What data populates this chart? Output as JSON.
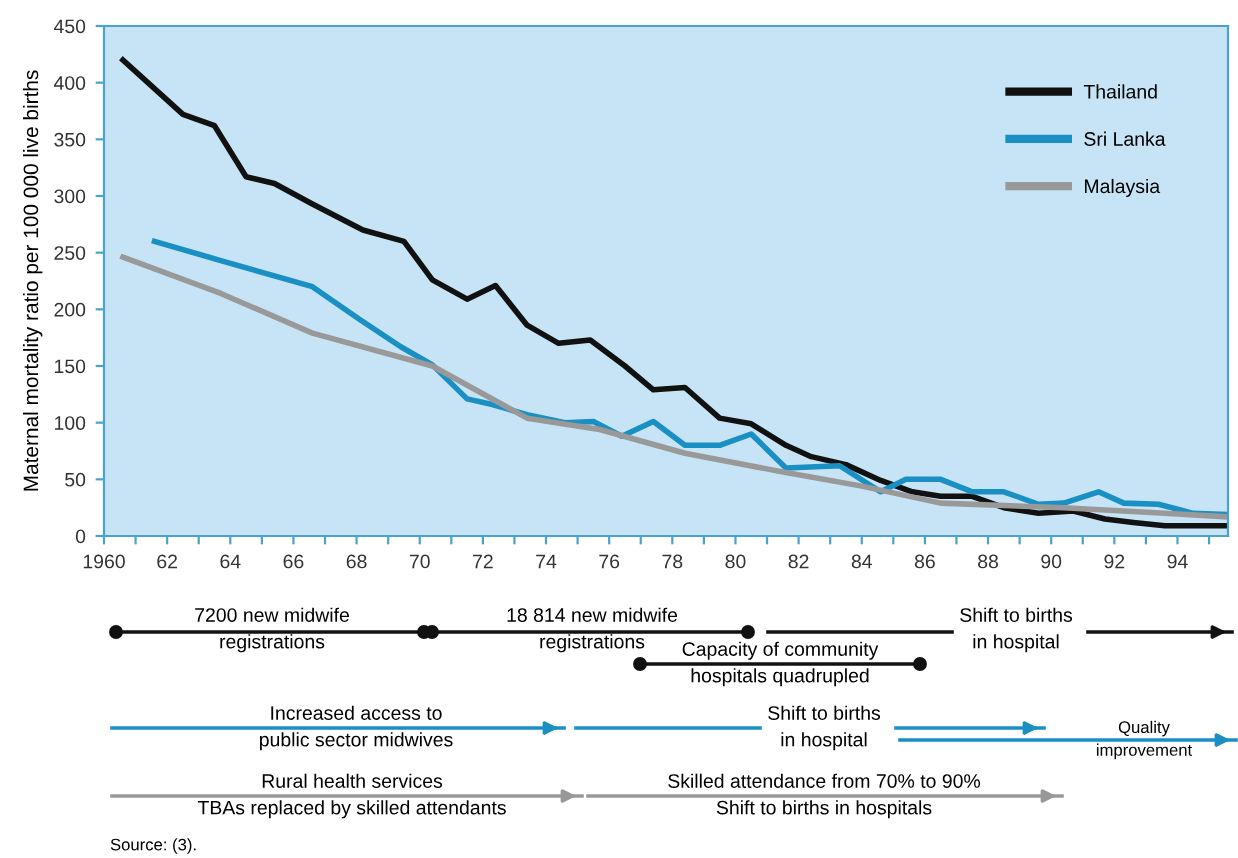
{
  "chart_data": {
    "type": "line",
    "ylabel": "Maternal mortality ratio per 100 000 live births",
    "xlim": [
      1960,
      1995.6
    ],
    "ylim": [
      0,
      450
    ],
    "yticks": [
      0,
      50,
      100,
      150,
      200,
      250,
      300,
      350,
      400,
      450
    ],
    "xticks": [
      {
        "value": 1960,
        "label": "1960"
      },
      {
        "value": 1961,
        "label": null
      },
      {
        "value": 1962,
        "label": "62"
      },
      {
        "value": 1963,
        "label": null
      },
      {
        "value": 1964,
        "label": "64"
      },
      {
        "value": 1965,
        "label": null
      },
      {
        "value": 1966,
        "label": "66"
      },
      {
        "value": 1967,
        "label": null
      },
      {
        "value": 1968,
        "label": "68"
      },
      {
        "value": 1969,
        "label": null
      },
      {
        "value": 1970,
        "label": "70"
      },
      {
        "value": 1971,
        "label": null
      },
      {
        "value": 1972,
        "label": "72"
      },
      {
        "value": 1973,
        "label": null
      },
      {
        "value": 1974,
        "label": "74"
      },
      {
        "value": 1975,
        "label": null
      },
      {
        "value": 1976,
        "label": "76"
      },
      {
        "value": 1977,
        "label": null
      },
      {
        "value": 1978,
        "label": "78"
      },
      {
        "value": 1979,
        "label": null
      },
      {
        "value": 1980,
        "label": "80"
      },
      {
        "value": 1981,
        "label": null
      },
      {
        "value": 1982,
        "label": "82"
      },
      {
        "value": 1983,
        "label": null
      },
      {
        "value": 1984,
        "label": "84"
      },
      {
        "value": 1985,
        "label": null
      },
      {
        "value": 1986,
        "label": "86"
      },
      {
        "value": 1987,
        "label": null
      },
      {
        "value": 1988,
        "label": "88"
      },
      {
        "value": 1989,
        "label": null
      },
      {
        "value": 1990,
        "label": "90"
      },
      {
        "value": 1991,
        "label": null
      },
      {
        "value": 1992,
        "label": "92"
      },
      {
        "value": 1993,
        "label": null
      },
      {
        "value": 1994,
        "label": "94"
      },
      {
        "value": 1995,
        "label": null
      }
    ],
    "grid": false,
    "legend": "top right",
    "marker": "none",
    "line_style": "solid",
    "series": [
      {
        "name": "Thailand",
        "color": "#111111",
        "x": [
          1960.6,
          1962.5,
          1963.5,
          1964.5,
          1965.4,
          1966.6,
          1968.2,
          1969.5,
          1970.4,
          1971.5,
          1972.4,
          1973.4,
          1974.4,
          1975.4,
          1976.5,
          1977.4,
          1978.4,
          1979.5,
          1980.5,
          1981.6,
          1982.4,
          1983.5,
          1984.6,
          1985.6,
          1986.5,
          1987.5,
          1988.5,
          1989.6,
          1990.7,
          1991.7,
          1992.6,
          1993.6,
          1995.5
        ],
        "values": [
          420,
          372,
          362,
          317,
          311,
          293,
          270,
          260,
          226,
          209,
          221,
          186,
          170,
          173,
          150,
          129,
          131,
          104,
          99,
          80,
          70,
          63,
          49,
          39,
          35,
          35,
          25,
          20,
          22,
          15,
          12,
          9,
          9
        ]
      },
      {
        "name": "Sri Lanka",
        "color": "#1a8fc4",
        "x": [
          1961.6,
          1963.7,
          1966.6,
          1968.1,
          1969.4,
          1970.4,
          1971.5,
          1972.3,
          1973.4,
          1974.6,
          1975.5,
          1976.4,
          1977.4,
          1978.4,
          1979.5,
          1980.5,
          1981.6,
          1983.3,
          1984.6,
          1985.4,
          1986.5,
          1987.5,
          1988.5,
          1989.6,
          1990.4,
          1991.5,
          1992.3,
          1993.4,
          1994.5,
          1995.5
        ],
        "values": [
          260,
          243,
          220,
          191,
          167,
          151,
          121,
          116,
          107,
          100,
          101,
          88,
          101,
          80,
          80,
          90,
          60,
          62,
          39,
          50,
          50,
          39,
          39,
          28,
          29,
          39,
          29,
          28,
          20,
          19
        ]
      },
      {
        "name": "Malaysia",
        "color": "#999999",
        "x": [
          1960.6,
          1963.7,
          1966.6,
          1970.4,
          1973.4,
          1975.7,
          1978.4,
          1981.6,
          1984,
          1986.5,
          1990.4,
          1993.6,
          1995.5
        ],
        "values": [
          246,
          214,
          179,
          150,
          104,
          94,
          73,
          56,
          44,
          29,
          25,
          20,
          17
        ]
      }
    ],
    "annotations": [
      "7200 new midwife\nregistrations",
      "18 814 new midwife\nregistrations",
      "Shift to births\nin hospital",
      "Capacity of community\nhospitals quadrupled",
      "Increased access to\npublic sector midwives",
      "Shift to births\nin hospital",
      "Quality\nimprovement",
      "Rural health services\nTBAs replaced by skilled attendants",
      "Skilled attendance from 70% to 90%\nShift to births in hospitals",
      "Source: (3)."
    ]
  }
}
